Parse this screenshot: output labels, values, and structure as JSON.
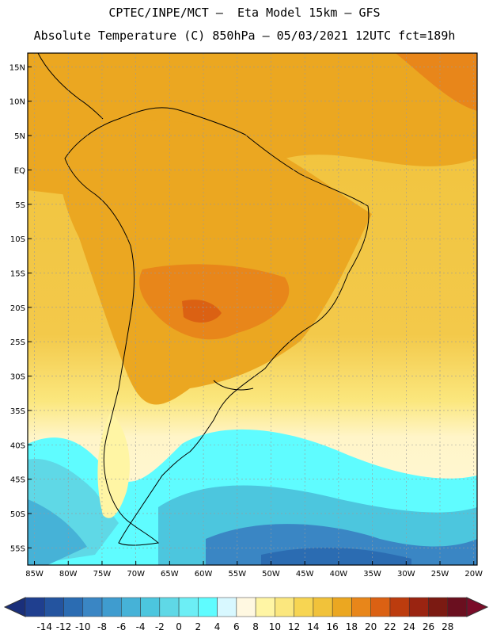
{
  "title_line1": "CPTEC/INPE/MCT –  Eta Model 15km – GFS",
  "title_line2": "Absolute Temperature (C) 850hPa – 05/03/2021 12UTC fct=189h",
  "lat_labels": [
    "15N",
    "10N",
    "5N",
    "EQ",
    "5S",
    "10S",
    "15S",
    "20S",
    "25S",
    "30S",
    "35S",
    "40S",
    "45S",
    "50S",
    "55S"
  ],
  "lat_values": [
    15,
    10,
    5,
    0,
    -5,
    -10,
    -15,
    -20,
    -25,
    -30,
    -35,
    -40,
    -45,
    -50,
    -55
  ],
  "lon_labels": [
    "85W",
    "80W",
    "75W",
    "70W",
    "65W",
    "60W",
    "55W",
    "50W",
    "45W",
    "40W",
    "35W",
    "30W",
    "25W",
    "20W"
  ],
  "lon_values": [
    -85,
    -80,
    -75,
    -70,
    -65,
    -60,
    -55,
    -50,
    -45,
    -40,
    -35,
    -30,
    -25,
    -20
  ],
  "colorbar": {
    "labels": [
      "-14",
      "-12",
      "-10",
      "-8",
      "-6",
      "-4",
      "-2",
      "0",
      "2",
      "4",
      "6",
      "8",
      "10",
      "12",
      "14",
      "16",
      "18",
      "20",
      "22",
      "24",
      "26",
      "28"
    ],
    "colors": [
      "#1f3f8f",
      "#24549f",
      "#2b6cb2",
      "#3a86c4",
      "#3f9ccf",
      "#46b2d7",
      "#4cc6de",
      "#5fd8e6",
      "#6ceef5",
      "#5ffcff",
      "#d8f8ff",
      "#fff8e1",
      "#fff5a4",
      "#fbe77e",
      "#f7d552",
      "#f1c23a",
      "#eba721",
      "#e8861a",
      "#db6113",
      "#bc3c0e",
      "#9a2411",
      "#7b1a12",
      "#6a0f1f"
    ],
    "left_arrow_color": "#1a2f7a",
    "right_arrow_color": "#7a0c28"
  }
}
